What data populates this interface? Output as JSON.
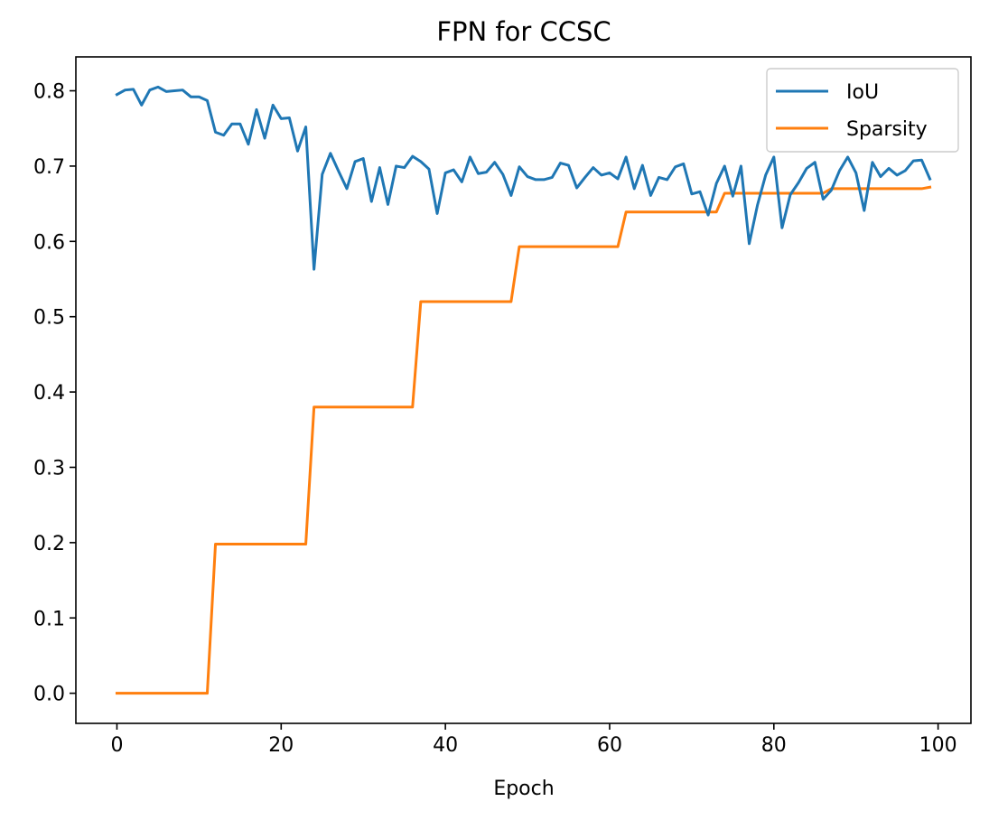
{
  "chart_data": {
    "type": "line",
    "title": "FPN for CCSC",
    "xlabel": "Epoch",
    "ylabel": "",
    "xlim": [
      -5,
      104
    ],
    "ylim": [
      -0.04,
      0.845
    ],
    "xticks": [
      0,
      20,
      40,
      60,
      80,
      100
    ],
    "yticks": [
      0.0,
      0.1,
      0.2,
      0.3,
      0.4,
      0.5,
      0.6,
      0.7,
      0.8
    ],
    "xtick_labels": [
      "0",
      "20",
      "40",
      "60",
      "80",
      "100"
    ],
    "ytick_labels": [
      "0.0",
      "0.1",
      "0.2",
      "0.3",
      "0.4",
      "0.5",
      "0.6",
      "0.7",
      "0.8"
    ],
    "grid": false,
    "legend_position": "top-right",
    "series": [
      {
        "name": "IoU",
        "color": "#1f77b4",
        "x": [
          0,
          1,
          2,
          3,
          4,
          5,
          6,
          7,
          8,
          9,
          10,
          11,
          12,
          13,
          14,
          15,
          16,
          17,
          18,
          19,
          20,
          21,
          22,
          23,
          24,
          25,
          26,
          27,
          28,
          29,
          30,
          31,
          32,
          33,
          34,
          35,
          36,
          37,
          38,
          39,
          40,
          41,
          42,
          43,
          44,
          45,
          46,
          47,
          48,
          49,
          50,
          51,
          52,
          53,
          54,
          55,
          56,
          57,
          58,
          59,
          60,
          61,
          62,
          63,
          64,
          65,
          66,
          67,
          68,
          69,
          70,
          71,
          72,
          73,
          74,
          75,
          76,
          77,
          78,
          79,
          80,
          81,
          82,
          83,
          84,
          85,
          86,
          87,
          88,
          89,
          90,
          91,
          92,
          93,
          94,
          95,
          96,
          97,
          98,
          99
        ],
        "values": [
          0.795,
          0.801,
          0.802,
          0.781,
          0.801,
          0.805,
          0.799,
          0.8,
          0.801,
          0.792,
          0.792,
          0.787,
          0.745,
          0.741,
          0.756,
          0.756,
          0.729,
          0.775,
          0.737,
          0.781,
          0.763,
          0.764,
          0.72,
          0.752,
          0.563,
          0.689,
          0.717,
          0.693,
          0.67,
          0.706,
          0.71,
          0.653,
          0.698,
          0.649,
          0.7,
          0.698,
          0.713,
          0.706,
          0.696,
          0.637,
          0.691,
          0.695,
          0.679,
          0.712,
          0.69,
          0.692,
          0.705,
          0.689,
          0.661,
          0.699,
          0.686,
          0.682,
          0.682,
          0.685,
          0.704,
          0.701,
          0.671,
          0.685,
          0.698,
          0.688,
          0.691,
          0.683,
          0.712,
          0.67,
          0.701,
          0.661,
          0.685,
          0.682,
          0.699,
          0.703,
          0.663,
          0.666,
          0.635,
          0.677,
          0.7,
          0.66,
          0.7,
          0.597,
          0.648,
          0.688,
          0.712,
          0.618,
          0.662,
          0.678,
          0.697,
          0.705,
          0.656,
          0.668,
          0.694,
          0.712,
          0.691,
          0.641,
          0.705,
          0.686,
          0.697,
          0.688,
          0.694,
          0.707,
          0.708,
          0.683
        ]
      },
      {
        "name": "Sparsity",
        "color": "#ff7f0e",
        "x": [
          0,
          11,
          12,
          23,
          24,
          36,
          37,
          48,
          49,
          61,
          62,
          73,
          74,
          86,
          87,
          98,
          99
        ],
        "values": [
          0.0,
          0.0,
          0.198,
          0.198,
          0.38,
          0.38,
          0.52,
          0.52,
          0.593,
          0.593,
          0.639,
          0.639,
          0.664,
          0.664,
          0.67,
          0.67,
          0.672
        ]
      }
    ]
  }
}
